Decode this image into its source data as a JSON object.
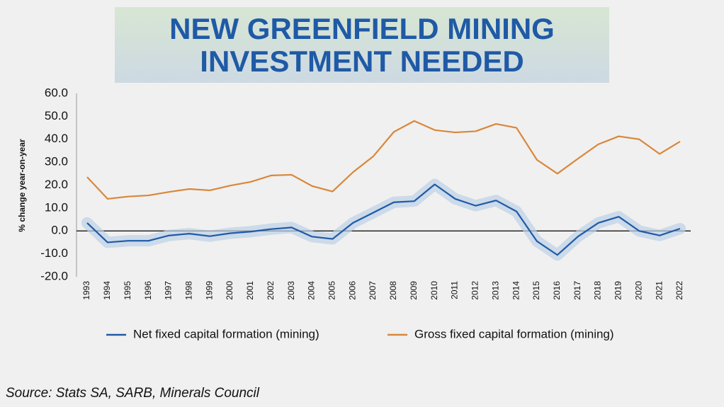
{
  "chart_data": {
    "type": "line",
    "title": "NEW GREENFIELD MINING INVESTMENT NEEDED",
    "y_label": "% change year-on-year",
    "source": "Source: Stats SA, SARB, Minerals Council",
    "categories": [
      "1993",
      "1994",
      "1995",
      "1996",
      "1997",
      "1998",
      "1999",
      "2000",
      "2001",
      "2002",
      "2003",
      "2004",
      "2005",
      "2006",
      "2007",
      "2008",
      "2009",
      "2010",
      "2011",
      "2012",
      "2013",
      "2014",
      "2015",
      "2016",
      "2017",
      "2018",
      "2019",
      "2020",
      "2021",
      "2022"
    ],
    "series": [
      {
        "name": "Net fixed capital formation (mining)",
        "color": "#1f5aa6",
        "glow": "#bcd0e6",
        "values": [
          3.5,
          -5,
          -4.3,
          -4.3,
          -2,
          -1.2,
          -2.3,
          -1,
          -0.3,
          0.8,
          1.5,
          -2.5,
          -3.5,
          3.5,
          8,
          12.5,
          13,
          20.3,
          14,
          11,
          13.3,
          8.5,
          -4.5,
          -10.5,
          -2.5,
          3.5,
          6.2,
          0,
          -2,
          1
        ]
      },
      {
        "name": "Gross fixed capital formation (mining)",
        "color": "#d9873a",
        "values": [
          23.5,
          14,
          15,
          15.5,
          17,
          18.3,
          17.7,
          19.8,
          21.4,
          24.2,
          24.5,
          19.6,
          17.2,
          25.6,
          32.6,
          43.2,
          48,
          44,
          43,
          43.5,
          46.7,
          45,
          31,
          25,
          31.5,
          37.8,
          41.3,
          40,
          33.6,
          39
        ]
      }
    ],
    "ylim": [
      -20,
      60
    ],
    "yticks": [
      {
        "value": -20,
        "label": "-20.0"
      },
      {
        "value": -10,
        "label": "-10.0"
      },
      {
        "value": 0,
        "label": "0.0"
      },
      {
        "value": 10,
        "label": "10.0"
      },
      {
        "value": 20,
        "label": "20.0"
      },
      {
        "value": 30,
        "label": "30.0"
      },
      {
        "value": 40,
        "label": "40.0"
      },
      {
        "value": 50,
        "label": "50.0"
      },
      {
        "value": 60,
        "label": "60.0"
      }
    ],
    "legend": "bottom"
  }
}
